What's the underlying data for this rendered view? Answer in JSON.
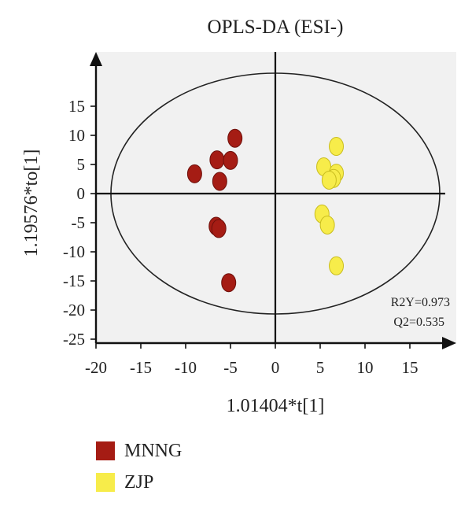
{
  "chart_data": {
    "type": "scatter",
    "title": "OPLS-DA (ESI-)",
    "xlabel": "1.01404*t[1]",
    "ylabel": "1.19576*to[1]",
    "xlim": [
      -20,
      20
    ],
    "ylim": [
      -25,
      25
    ],
    "xticks": [
      -20,
      -15,
      -10,
      -5,
      0,
      5,
      10,
      15
    ],
    "yticks": [
      -25,
      -20,
      -15,
      -10,
      -5,
      0,
      5,
      10,
      15
    ],
    "series": [
      {
        "name": "MNNG",
        "color": "#a51c14",
        "x": [
          -4.5,
          -6.5,
          -5.0,
          -9.0,
          -6.2,
          -6.6,
          -6.3,
          -5.2
        ],
        "y": [
          9.5,
          5.8,
          5.7,
          3.4,
          2.1,
          -5.6,
          -6.0,
          -15.3
        ]
      },
      {
        "name": "ZJP",
        "color": "#f7ec4a",
        "x": [
          6.8,
          5.4,
          6.8,
          6.5,
          6.0,
          5.2,
          5.8,
          6.8
        ],
        "y": [
          8.1,
          4.6,
          3.5,
          2.6,
          2.3,
          -3.5,
          -5.4,
          -12.4
        ]
      }
    ],
    "annotations": [
      "R2Y=0.973",
      "Q2=0.535"
    ],
    "grid": false,
    "legend_position": "bottom-left"
  },
  "legend": {
    "items": [
      {
        "label": "MNNG",
        "color": "#a51c14"
      },
      {
        "label": "ZJP",
        "color": "#f7ec4a"
      }
    ]
  }
}
